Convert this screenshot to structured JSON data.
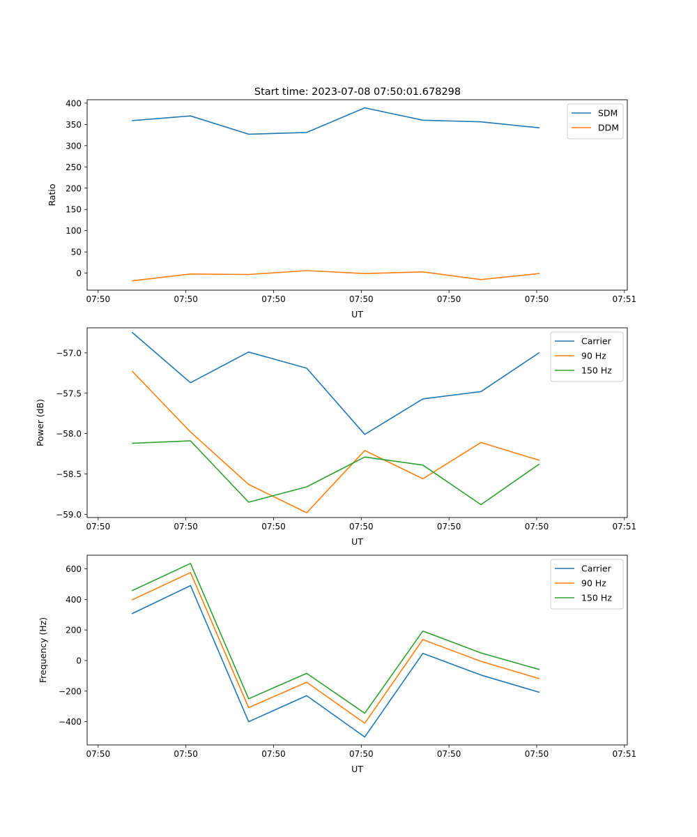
{
  "figure": {
    "title": "Start time: 2023-07-08 07:50:01.678298"
  },
  "colors": {
    "blue": "#1f77b4",
    "orange": "#ff7f0e",
    "green": "#2ca02c"
  },
  "chart_data": [
    {
      "type": "line",
      "title": "Start time: 2023-07-08 07:50:01.678298",
      "xlabel": "UT",
      "ylabel": "Ratio",
      "x": [
        1,
        2,
        3,
        4,
        5,
        6,
        7,
        8
      ],
      "xlim": [
        0.22,
        9.52
      ],
      "xticks": [
        0.41,
        1.92,
        3.43,
        4.94,
        6.45,
        7.96,
        9.47
      ],
      "xtick_labels": [
        "07:50",
        "07:50",
        "07:50",
        "07:50",
        "07:50",
        "07:50",
        "07:51"
      ],
      "ylim": [
        -40,
        408
      ],
      "yticks": [
        0,
        50,
        100,
        150,
        200,
        250,
        300,
        350,
        400
      ],
      "ytick_labels": [
        "0",
        "50",
        "100",
        "150",
        "200",
        "250",
        "300",
        "350",
        "400"
      ],
      "legend": "top-right",
      "series": [
        {
          "name": "SDM",
          "color": "blue",
          "values": [
            359,
            370,
            327,
            331,
            389,
            360,
            356,
            342
          ]
        },
        {
          "name": "DDM",
          "color": "orange",
          "values": [
            -18,
            -2,
            -3,
            6,
            -1,
            3,
            -15,
            -1
          ]
        }
      ]
    },
    {
      "type": "line",
      "title": "",
      "xlabel": "UT",
      "ylabel": "Power (dB)",
      "x": [
        1,
        2,
        3,
        4,
        5,
        6,
        7,
        8
      ],
      "xlim": [
        0.22,
        9.52
      ],
      "xticks": [
        0.41,
        1.92,
        3.43,
        4.94,
        6.45,
        7.96,
        9.47
      ],
      "xtick_labels": [
        "07:50",
        "07:50",
        "07:50",
        "07:50",
        "07:50",
        "07:50",
        "07:51"
      ],
      "ylim": [
        -59.04,
        -56.69
      ],
      "yticks": [
        -57.0,
        -57.5,
        -58.0,
        -58.5,
        -59.0
      ],
      "ytick_labels": [
        "−57.0",
        "−57.5",
        "−58.0",
        "−58.5",
        "−59.0"
      ],
      "legend": "top-right",
      "series": [
        {
          "name": "Carrier",
          "color": "blue",
          "values": [
            -56.75,
            -57.37,
            -56.99,
            -57.19,
            -58.01,
            -57.57,
            -57.48,
            -57.0
          ]
        },
        {
          "name": "90 Hz",
          "color": "orange",
          "values": [
            -57.23,
            -57.98,
            -58.63,
            -58.98,
            -58.21,
            -58.56,
            -58.11,
            -58.33
          ]
        },
        {
          "name": "150 Hz",
          "color": "green",
          "values": [
            -58.12,
            -58.09,
            -58.85,
            -58.66,
            -58.29,
            -58.39,
            -58.88,
            -58.38
          ]
        }
      ]
    },
    {
      "type": "line",
      "title": "",
      "xlabel": "UT",
      "ylabel": "Frequency (Hz)",
      "x": [
        1,
        2,
        3,
        4,
        5,
        6,
        7,
        8
      ],
      "xlim": [
        0.22,
        9.52
      ],
      "xticks": [
        0.41,
        1.92,
        3.43,
        4.94,
        6.45,
        7.96,
        9.47
      ],
      "xtick_labels": [
        "07:50",
        "07:50",
        "07:50",
        "07:50",
        "07:50",
        "07:50",
        "07:51"
      ],
      "ylim": [
        -552,
        689
      ],
      "yticks": [
        600,
        400,
        200,
        0,
        -200,
        -400
      ],
      "ytick_labels": [
        "600",
        "400",
        "200",
        "0",
        "−200",
        "−400"
      ],
      "legend": "top-right",
      "series": [
        {
          "name": "Carrier",
          "color": "blue",
          "values": [
            308,
            490,
            -400,
            -230,
            -500,
            47,
            -95,
            -207
          ]
        },
        {
          "name": "90 Hz",
          "color": "orange",
          "values": [
            398,
            576,
            -308,
            -142,
            -410,
            137,
            -5,
            -118
          ]
        },
        {
          "name": "150 Hz",
          "color": "green",
          "values": [
            458,
            635,
            -250,
            -84,
            -345,
            193,
            50,
            -58
          ]
        }
      ]
    }
  ]
}
